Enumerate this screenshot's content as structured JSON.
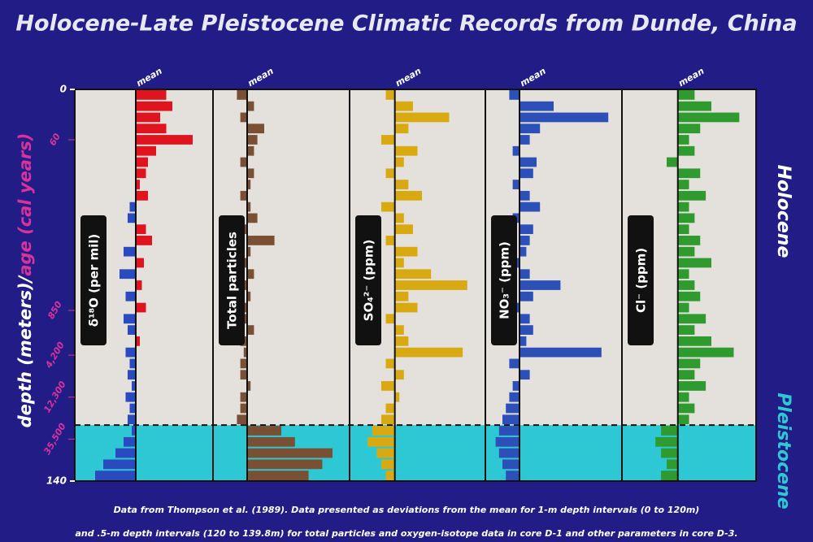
{
  "chart_data": {
    "type": "bar",
    "title": "Holocene-Late Pleistocene Climatic Records from Dunde, China",
    "y_label_depth": "depth (meters)/",
    "y_label_age": "age (cal years)",
    "ylim": [
      0,
      140
    ],
    "yticks": [
      0,
      140
    ],
    "age_ticks": [
      {
        "value": 18,
        "label": "60"
      },
      {
        "value": 79,
        "label": "850"
      },
      {
        "value": 95,
        "label": "4,200"
      },
      {
        "value": 110,
        "label": "12,300"
      },
      {
        "value": 125,
        "label": "35,500"
      }
    ],
    "mean_label": "mean",
    "zones": [
      {
        "name": "Holocene",
        "from": 0,
        "to": 120,
        "color": "#ffffff"
      },
      {
        "name": "Pleistocene",
        "from": 120,
        "to": 140,
        "color": "#2ec8d4"
      }
    ],
    "depths": [
      0,
      4,
      8,
      12,
      16,
      20,
      24,
      28,
      32,
      36,
      40,
      44,
      48,
      52,
      56,
      60,
      64,
      68,
      72,
      76,
      80,
      84,
      88,
      92,
      96,
      100,
      104,
      108,
      112,
      116,
      120,
      124,
      128,
      132,
      136
    ],
    "series": [
      {
        "name": "δ¹⁸O (per mil)",
        "color": "#e0141e",
        "negative_color": "#2a4bc0",
        "xlim": [
          -3,
          3.8
        ],
        "values": [
          1.5,
          1.8,
          1.2,
          1.5,
          2.8,
          1.0,
          0.6,
          0.5,
          0.2,
          0.6,
          -0.3,
          -0.4,
          0.5,
          0.8,
          -0.6,
          0.4,
          -0.8,
          0.3,
          -0.5,
          0.5,
          -0.6,
          -0.4,
          0.2,
          -0.5,
          -0.3,
          -0.4,
          -0.2,
          -0.5,
          -0.3,
          -0.4,
          -0.2,
          -0.6,
          -1.0,
          -1.6,
          -2.0
        ]
      },
      {
        "name": "Total particles",
        "color": "#7a5034",
        "xlim": [
          -1,
          3
        ],
        "values": [
          -0.3,
          0.2,
          -0.2,
          0.5,
          0.3,
          0.2,
          -0.2,
          0.2,
          0.1,
          -0.2,
          0.1,
          0.3,
          -0.2,
          0.8,
          0.1,
          -0.2,
          0.2,
          -0.3,
          0.1,
          -0.2,
          -0.1,
          0.2,
          -0.2,
          -0.1,
          -0.2,
          -0.2,
          0.1,
          -0.2,
          -0.2,
          -0.3,
          1.0,
          1.4,
          2.5,
          2.2,
          1.8
        ]
      },
      {
        "name": "SO₄²⁻ (ppm)",
        "color": "#d9a912",
        "xlim": [
          -1,
          2
        ],
        "values": [
          -0.2,
          0.4,
          1.2,
          0.3,
          -0.3,
          0.5,
          0.2,
          -0.2,
          0.3,
          0.6,
          -0.3,
          0.2,
          0.4,
          -0.2,
          0.5,
          0.2,
          0.8,
          1.6,
          0.3,
          0.5,
          -0.2,
          0.2,
          0.3,
          1.5,
          -0.2,
          0.2,
          -0.3,
          0.1,
          -0.2,
          -0.3,
          -0.5,
          -0.6,
          -0.4,
          -0.3,
          -0.2
        ]
      },
      {
        "name": "NO₃⁻ (ppm)",
        "color": "#2c4fb8",
        "xlim": [
          -1,
          3
        ],
        "values": [
          -0.3,
          1.0,
          2.6,
          0.6,
          0.3,
          -0.2,
          0.5,
          0.4,
          -0.2,
          0.3,
          0.6,
          -0.2,
          0.4,
          0.3,
          0.2,
          -0.2,
          0.3,
          1.2,
          0.4,
          -0.2,
          0.3,
          0.4,
          0.2,
          2.4,
          -0.3,
          0.3,
          -0.2,
          -0.3,
          -0.4,
          -0.5,
          -0.6,
          -0.7,
          -0.6,
          -0.5,
          -0.4
        ]
      },
      {
        "name": "Cl⁻ (ppm)",
        "color": "#2f9a2e",
        "xlim": [
          -1,
          1.4
        ],
        "values": [
          0.3,
          0.6,
          1.1,
          0.4,
          0.2,
          0.3,
          -0.2,
          0.4,
          0.2,
          0.5,
          0.2,
          0.3,
          0.2,
          0.4,
          0.3,
          0.6,
          0.2,
          0.3,
          0.4,
          0.2,
          0.5,
          0.3,
          0.6,
          1.0,
          0.4,
          0.3,
          0.5,
          0.2,
          0.3,
          0.2,
          -0.3,
          -0.4,
          -0.3,
          -0.2,
          -0.3
        ]
      }
    ],
    "notes": [
      "Data from Thompson et al. (1989).  Data presented as deviations from the mean for 1-m depth intervals (0 to 120m)",
      "and .5-m depth intervals (120 to 139.8m) for total particles and oxygen-isotope data in core D-1 and other parameters in core D-3."
    ]
  }
}
